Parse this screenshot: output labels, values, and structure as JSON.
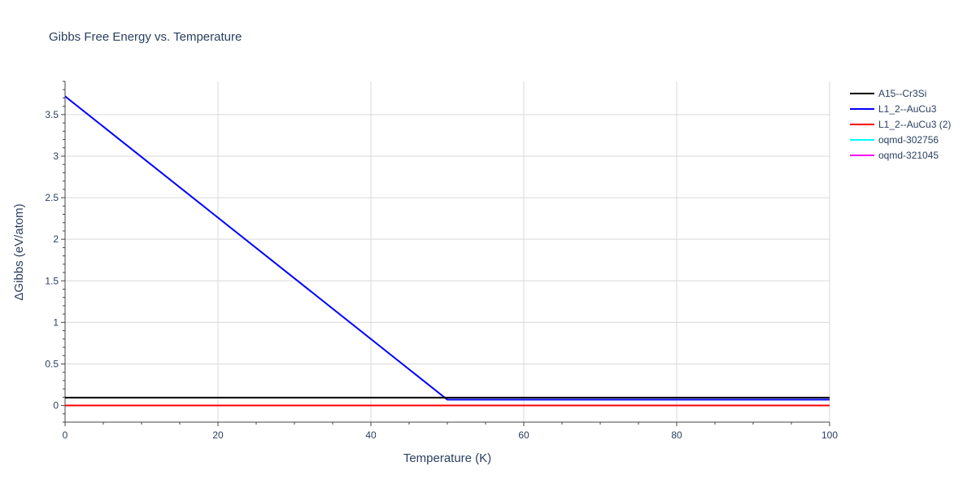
{
  "chart_data": {
    "type": "line",
    "title": "Gibbs Free Energy vs. Temperature",
    "xlabel": "Temperature (K)",
    "ylabel": "ΔGibbs (eV/atom)",
    "xlim": [
      0,
      100
    ],
    "ylim": [
      -0.2,
      3.9
    ],
    "xticks": [
      0,
      20,
      40,
      60,
      80,
      100
    ],
    "yticks": [
      0,
      0.5,
      1,
      1.5,
      2,
      2.5,
      3,
      3.5
    ],
    "grid": true,
    "legend_position": "top-right",
    "series": [
      {
        "name": "A15--Cr3Si",
        "color": "#000000",
        "x": [
          0,
          100
        ],
        "y": [
          0.095,
          0.095
        ]
      },
      {
        "name": "L1_2--AuCu3",
        "color": "#0000ff",
        "x": [
          0,
          50,
          100
        ],
        "y": [
          3.72,
          0.07,
          0.07
        ]
      },
      {
        "name": "L1_2--AuCu3 (2)",
        "color": "#ff0000",
        "x": [
          0,
          100
        ],
        "y": [
          0.0,
          0.0
        ]
      },
      {
        "name": "oqmd-302756",
        "color": "#00ffff",
        "x": [
          0,
          100
        ],
        "y": [
          0.0,
          0.0
        ]
      },
      {
        "name": "oqmd-321045",
        "color": "#ff00ff",
        "x": [
          0,
          100
        ],
        "y": [
          0.0,
          0.0
        ]
      }
    ]
  }
}
